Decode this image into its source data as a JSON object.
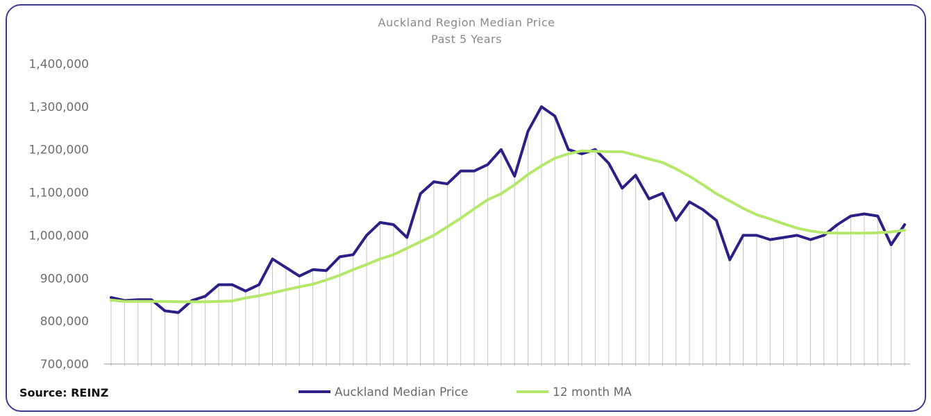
{
  "source_label": "Source: REINZ",
  "colors": {
    "frame": "#3d3b8e",
    "median_line": "#2b2086",
    "ma_line": "#b5e86a",
    "drop_lines": "#c4c4c4",
    "baseline": "#b0b0b0"
  },
  "chart_data": {
    "type": "line",
    "title": "Auckland Region Median Price",
    "subtitle": "Past 5 Years",
    "xlabel": "",
    "ylabel": "",
    "ylim": [
      700000,
      1400000
    ],
    "yticks": [
      700000,
      800000,
      900000,
      1000000,
      1100000,
      1200000,
      1300000,
      1400000
    ],
    "ytick_labels": [
      "700,000",
      "800,000",
      "900,000",
      "1,000,000",
      "1,100,000",
      "1,200,000",
      "1,300,000",
      "1,400,000"
    ],
    "grid": false,
    "drop_lines": true,
    "legend_position": "bottom",
    "x_count": 60,
    "series": [
      {
        "name": "Auckland Median Price",
        "color": "#2b2086",
        "values": [
          855000,
          848000,
          850000,
          850000,
          824000,
          820000,
          848000,
          858000,
          885000,
          885000,
          870000,
          885000,
          945000,
          925000,
          905000,
          920000,
          918000,
          950000,
          955000,
          1000000,
          1030000,
          1025000,
          995000,
          1097000,
          1125000,
          1120000,
          1150000,
          1150000,
          1165000,
          1200000,
          1138000,
          1243000,
          1300000,
          1278000,
          1200000,
          1190000,
          1200000,
          1168000,
          1110000,
          1140000,
          1085000,
          1098000,
          1035000,
          1078000,
          1060000,
          1035000,
          943000,
          1000000,
          1000000,
          990000,
          995000,
          1000000,
          990000,
          1000000,
          1025000,
          1045000,
          1050000,
          1045000,
          978000,
          1025000
        ]
      },
      {
        "name": "12 month MA",
        "color": "#b5e86a",
        "values": [
          849000,
          846000,
          846000,
          846000,
          846000,
          845000,
          845000,
          845000,
          846000,
          847000,
          854000,
          859000,
          866000,
          873000,
          880000,
          886000,
          896000,
          907000,
          920000,
          932000,
          945000,
          955000,
          970000,
          985000,
          1000000,
          1020000,
          1040000,
          1062000,
          1083000,
          1097000,
          1118000,
          1142000,
          1162000,
          1180000,
          1190000,
          1197000,
          1196000,
          1195000,
          1195000,
          1187000,
          1178000,
          1170000,
          1155000,
          1138000,
          1118000,
          1097000,
          1080000,
          1063000,
          1048000,
          1038000,
          1027000,
          1017000,
          1010000,
          1006000,
          1005000,
          1005000,
          1005000,
          1006000,
          1008000,
          1012000
        ]
      }
    ]
  }
}
